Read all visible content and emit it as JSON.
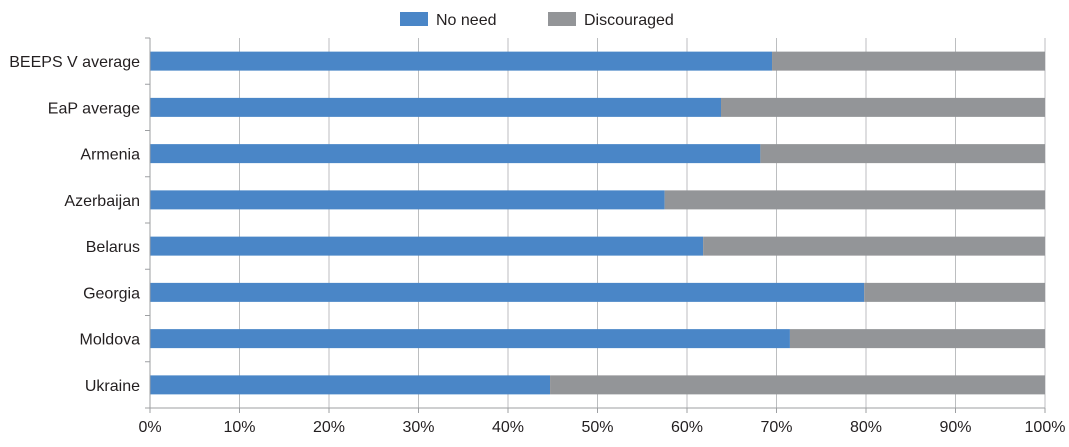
{
  "chart_data": {
    "type": "bar",
    "orientation": "horizontal",
    "stacked": "percent",
    "title": "",
    "xlabel": "",
    "ylabel": "",
    "xlim": [
      0,
      100
    ],
    "x_ticks": [
      "0%",
      "10%",
      "20%",
      "30%",
      "40%",
      "50%",
      "60%",
      "70%",
      "80%",
      "90%",
      "100%"
    ],
    "grid": "vertical",
    "legend_position": "top",
    "categories": [
      "BEEPS V average",
      "EaP average",
      "Armenia",
      "Azerbaijan",
      "Belarus",
      "Georgia",
      "Moldova",
      "Ukraine"
    ],
    "series": [
      {
        "name": "No need",
        "color": "#4a86c7",
        "values": [
          69.5,
          63.8,
          68.2,
          57.5,
          61.8,
          79.8,
          71.5,
          44.7
        ]
      },
      {
        "name": "Discouraged",
        "color": "#939598",
        "values": [
          30.5,
          36.2,
          31.8,
          42.5,
          38.2,
          20.2,
          28.5,
          55.3
        ]
      }
    ]
  }
}
